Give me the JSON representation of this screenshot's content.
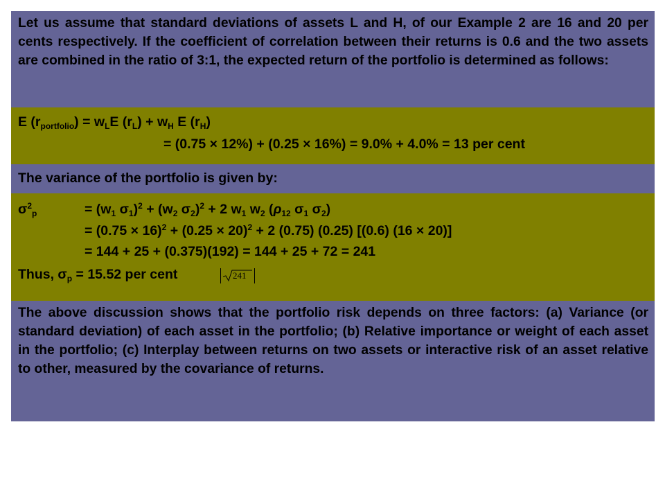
{
  "intro": "Let us assume that standard deviations of assets L and H, of our Example 2 are 16 and 20 per cents respectively. If the coefficient of correlation between their returns is 0.6 and the two assets are combined in the ratio of 3:1, the expected return of the portfolio is determined as follows:",
  "eq1": {
    "line2": "= (0.75 × 12%) + (0.25 × 16%) = 9.0% + 4.0% = 13 per cent"
  },
  "variance_heading": "The variance of the portfolio is given by:",
  "eq2": {
    "line2": "= (0.75 × 16)",
    "line2b": " + (0.25 × 20)",
    "line2c": " + 2 (0.75) (0.25) [(0.6) (16 × 20)]",
    "line3": "= 144 + 25 + (0.375)(192) = 144 + 25 + 72 = 241",
    "thus": "Thus, σ",
    "thus_rest": " = 15.52 per cent",
    "sqrt_value": "241"
  },
  "conclusion": "The above discussion shows that the portfolio risk depends on three factors: (a) Variance (or standard deviation) of each asset in the portfolio; (b) Relative importance or weight of each asset in the portfolio; (c) Interplay between returns on two assets or interactive risk of an asset relative to other, measured by the covariance of returns."
}
